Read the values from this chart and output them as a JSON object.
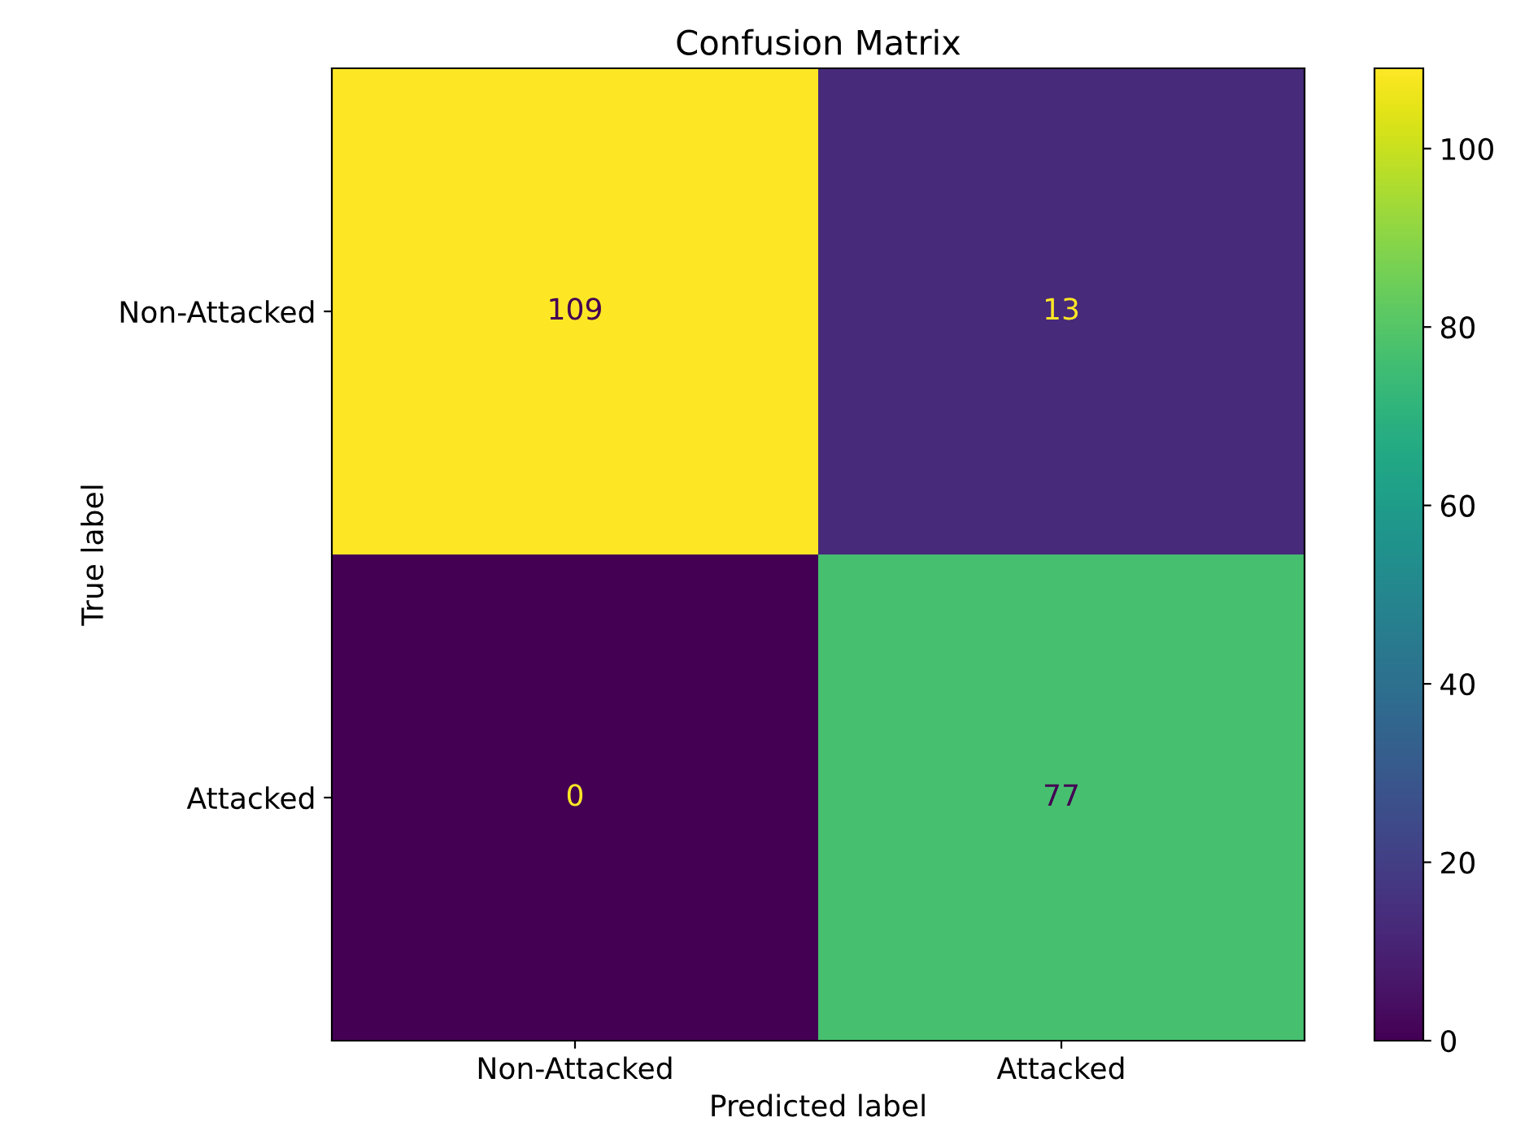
{
  "chart_data": {
    "type": "heatmap",
    "title": "Confusion Matrix",
    "xlabel": "Predicted label",
    "ylabel": "True label",
    "categories": [
      "Non-Attacked",
      "Attacked"
    ],
    "y_categories": [
      "Non-Attacked",
      "Attacked"
    ],
    "cells": [
      [
        109,
        13
      ],
      [
        0,
        77
      ]
    ],
    "data_labels": true,
    "clim": [
      0,
      109
    ],
    "cticks": [
      0,
      20,
      40,
      60,
      80,
      100
    ]
  }
}
